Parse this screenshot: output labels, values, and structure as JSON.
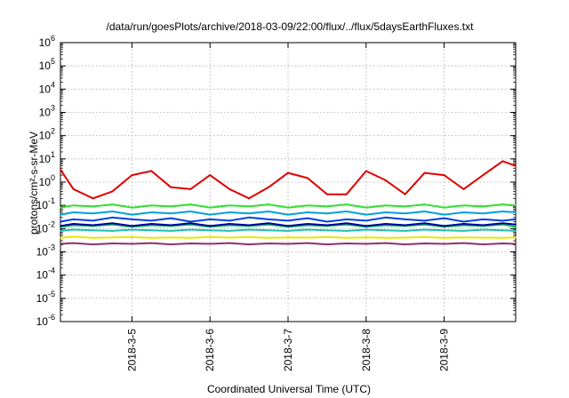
{
  "chart_data": {
    "type": "line",
    "title": "/data/run/goesPlots/archive/2018-03-09/22:00/flux/../flux/5daysEarthFluxes.txt",
    "xlabel": "Coordinated Universal Time (UTC)",
    "ylabel": "protons/cm²-s-sr-MeV",
    "yscale": "log",
    "ylim": [
      1e-06,
      1000000.0
    ],
    "y_ticks": [
      {
        "value": 1e-06,
        "base": "10",
        "exp": "-6"
      },
      {
        "value": 1e-05,
        "base": "10",
        "exp": "-5"
      },
      {
        "value": 0.0001,
        "base": "10",
        "exp": "-4"
      },
      {
        "value": 0.001,
        "base": "10",
        "exp": "-3"
      },
      {
        "value": 0.01,
        "base": "10",
        "exp": "-2"
      },
      {
        "value": 0.1,
        "base": "10",
        "exp": "-1"
      },
      {
        "value": 1,
        "base": "10",
        "exp": "0"
      },
      {
        "value": 10,
        "base": "10",
        "exp": "1"
      },
      {
        "value": 100,
        "base": "10",
        "exp": "2"
      },
      {
        "value": 1000,
        "base": "10",
        "exp": "3"
      },
      {
        "value": 10000,
        "base": "10",
        "exp": "4"
      },
      {
        "value": 100000,
        "base": "10",
        "exp": "5"
      },
      {
        "value": 1000000,
        "base": "10",
        "exp": "6"
      }
    ],
    "xlim": [
      "2018-03-04T02:00",
      "2018-03-09T22:00"
    ],
    "x_ticks": [
      "2018-3-5",
      "2018-3-6",
      "2018-3-7",
      "2018-3-8",
      "2018-3-9"
    ],
    "grid": true,
    "series": [
      {
        "color": "#e8e800",
        "x": [
          "2018-03-04T02:00",
          "2018-03-04T06:00",
          "2018-03-04T12:00",
          "2018-03-04T18:00",
          "2018-03-05T00:00",
          "2018-03-05T06:00",
          "2018-03-05T12:00",
          "2018-03-05T18:00",
          "2018-03-06T00:00",
          "2018-03-06T06:00",
          "2018-03-06T12:00",
          "2018-03-06T18:00",
          "2018-03-07T00:00",
          "2018-03-07T06:00",
          "2018-03-07T12:00",
          "2018-03-07T18:00",
          "2018-03-08T00:00",
          "2018-03-08T06:00",
          "2018-03-08T12:00",
          "2018-03-08T18:00",
          "2018-03-09T00:00",
          "2018-03-09T06:00",
          "2018-03-09T12:00",
          "2018-03-09T18:00",
          "2018-03-09T22:00"
        ],
        "y": [
          0.004,
          0.0045,
          0.004,
          0.0042,
          0.0043,
          0.004,
          0.0042,
          0.004,
          0.0044,
          0.0041,
          0.0043,
          0.004,
          0.0042,
          0.0041,
          0.0043,
          0.004,
          0.0042,
          0.004,
          0.0041,
          0.0043,
          0.004,
          0.0042,
          0.0041,
          0.004,
          0.0042
        ]
      },
      {
        "color": "#20c0b0",
        "x": [
          "2018-03-04T02:00",
          "2018-03-04T06:00",
          "2018-03-04T12:00",
          "2018-03-04T18:00",
          "2018-03-05T00:00",
          "2018-03-05T06:00",
          "2018-03-05T12:00",
          "2018-03-05T18:00",
          "2018-03-06T00:00",
          "2018-03-06T06:00",
          "2018-03-06T12:00",
          "2018-03-06T18:00",
          "2018-03-07T00:00",
          "2018-03-07T06:00",
          "2018-03-07T12:00",
          "2018-03-07T18:00",
          "2018-03-08T00:00",
          "2018-03-08T06:00",
          "2018-03-08T12:00",
          "2018-03-08T18:00",
          "2018-03-09T00:00",
          "2018-03-09T06:00",
          "2018-03-09T12:00",
          "2018-03-09T18:00",
          "2018-03-09T22:00"
        ],
        "y": [
          0.008,
          0.009,
          0.0085,
          0.008,
          0.009,
          0.0085,
          0.008,
          0.009,
          0.0085,
          0.008,
          0.009,
          0.0085,
          0.008,
          0.009,
          0.0085,
          0.008,
          0.009,
          0.0085,
          0.008,
          0.009,
          0.0085,
          0.008,
          0.009,
          0.0085,
          0.008
        ]
      },
      {
        "color": "#00c040",
        "x": [
          "2018-03-04T02:00",
          "2018-03-04T06:00",
          "2018-03-04T12:00",
          "2018-03-04T18:00",
          "2018-03-05T00:00",
          "2018-03-05T06:00",
          "2018-03-05T12:00",
          "2018-03-05T18:00",
          "2018-03-06T00:00",
          "2018-03-06T06:00",
          "2018-03-06T12:00",
          "2018-03-06T18:00",
          "2018-03-07T00:00",
          "2018-03-07T06:00",
          "2018-03-07T12:00",
          "2018-03-07T18:00",
          "2018-03-08T00:00",
          "2018-03-08T06:00",
          "2018-03-08T12:00",
          "2018-03-08T18:00",
          "2018-03-09T00:00",
          "2018-03-09T06:00",
          "2018-03-09T12:00",
          "2018-03-09T18:00",
          "2018-03-09T22:00"
        ],
        "y": [
          0.012,
          0.014,
          0.013,
          0.015,
          0.012,
          0.014,
          0.013,
          0.015,
          0.012,
          0.014,
          0.013,
          0.015,
          0.012,
          0.014,
          0.013,
          0.015,
          0.012,
          0.014,
          0.013,
          0.015,
          0.012,
          0.014,
          0.013,
          0.015,
          0.012
        ]
      },
      {
        "color": "#0040e0",
        "x": [
          "2018-03-04T02:00",
          "2018-03-04T06:00",
          "2018-03-04T12:00",
          "2018-03-04T18:00",
          "2018-03-05T00:00",
          "2018-03-05T06:00",
          "2018-03-05T12:00",
          "2018-03-05T18:00",
          "2018-03-06T00:00",
          "2018-03-06T06:00",
          "2018-03-06T12:00",
          "2018-03-06T18:00",
          "2018-03-07T00:00",
          "2018-03-07T06:00",
          "2018-03-07T12:00",
          "2018-03-07T18:00",
          "2018-03-08T00:00",
          "2018-03-08T06:00",
          "2018-03-08T12:00",
          "2018-03-08T18:00",
          "2018-03-09T00:00",
          "2018-03-09T06:00",
          "2018-03-09T12:00",
          "2018-03-09T18:00",
          "2018-03-09T22:00"
        ],
        "y": [
          0.02,
          0.025,
          0.022,
          0.03,
          0.025,
          0.022,
          0.028,
          0.02,
          0.025,
          0.022,
          0.03,
          0.025,
          0.022,
          0.028,
          0.02,
          0.025,
          0.022,
          0.03,
          0.025,
          0.022,
          0.028,
          0.02,
          0.025,
          0.022,
          0.025
        ]
      },
      {
        "color": "#00a0e0",
        "x": [
          "2018-03-04T02:00",
          "2018-03-04T06:00",
          "2018-03-04T12:00",
          "2018-03-04T18:00",
          "2018-03-05T00:00",
          "2018-03-05T06:00",
          "2018-03-05T12:00",
          "2018-03-05T18:00",
          "2018-03-06T00:00",
          "2018-03-06T06:00",
          "2018-03-06T12:00",
          "2018-03-06T18:00",
          "2018-03-07T00:00",
          "2018-03-07T06:00",
          "2018-03-07T12:00",
          "2018-03-07T18:00",
          "2018-03-08T00:00",
          "2018-03-08T06:00",
          "2018-03-08T12:00",
          "2018-03-08T18:00",
          "2018-03-09T00:00",
          "2018-03-09T06:00",
          "2018-03-09T12:00",
          "2018-03-09T18:00",
          "2018-03-09T22:00"
        ],
        "y": [
          0.04,
          0.05,
          0.045,
          0.055,
          0.04,
          0.05,
          0.045,
          0.055,
          0.04,
          0.05,
          0.045,
          0.055,
          0.04,
          0.05,
          0.045,
          0.055,
          0.04,
          0.05,
          0.045,
          0.055,
          0.04,
          0.05,
          0.045,
          0.055,
          0.05
        ]
      },
      {
        "color": "#30e030",
        "x": [
          "2018-03-04T02:00",
          "2018-03-04T06:00",
          "2018-03-04T12:00",
          "2018-03-04T18:00",
          "2018-03-05T00:00",
          "2018-03-05T06:00",
          "2018-03-05T12:00",
          "2018-03-05T18:00",
          "2018-03-06T00:00",
          "2018-03-06T06:00",
          "2018-03-06T12:00",
          "2018-03-06T18:00",
          "2018-03-07T00:00",
          "2018-03-07T06:00",
          "2018-03-07T12:00",
          "2018-03-07T18:00",
          "2018-03-08T00:00",
          "2018-03-08T06:00",
          "2018-03-08T12:00",
          "2018-03-08T18:00",
          "2018-03-09T00:00",
          "2018-03-09T06:00",
          "2018-03-09T12:00",
          "2018-03-09T18:00",
          "2018-03-09T22:00"
        ],
        "y": [
          0.08,
          0.1,
          0.09,
          0.11,
          0.08,
          0.1,
          0.09,
          0.11,
          0.08,
          0.1,
          0.09,
          0.11,
          0.08,
          0.1,
          0.09,
          0.11,
          0.08,
          0.1,
          0.09,
          0.11,
          0.08,
          0.1,
          0.09,
          0.11,
          0.1
        ]
      },
      {
        "color": "#0000a0",
        "x": [
          "2018-03-04T02:00",
          "2018-03-04T06:00",
          "2018-03-04T12:00",
          "2018-03-04T18:00",
          "2018-03-05T00:00",
          "2018-03-05T06:00",
          "2018-03-05T12:00",
          "2018-03-05T18:00",
          "2018-03-06T00:00",
          "2018-03-06T06:00",
          "2018-03-06T12:00",
          "2018-03-06T18:00",
          "2018-03-07T00:00",
          "2018-03-07T06:00",
          "2018-03-07T12:00",
          "2018-03-07T18:00",
          "2018-03-08T00:00",
          "2018-03-08T06:00",
          "2018-03-08T12:00",
          "2018-03-08T18:00",
          "2018-03-09T00:00",
          "2018-03-09T06:00",
          "2018-03-09T12:00",
          "2018-03-09T18:00",
          "2018-03-09T22:00"
        ],
        "y": [
          0.013,
          0.016,
          0.014,
          0.017,
          0.013,
          0.016,
          0.014,
          0.017,
          0.013,
          0.016,
          0.014,
          0.017,
          0.013,
          0.016,
          0.014,
          0.017,
          0.013,
          0.016,
          0.014,
          0.017,
          0.013,
          0.016,
          0.014,
          0.017,
          0.015
        ]
      },
      {
        "color": "#903070",
        "x": [
          "2018-03-04T02:00",
          "2018-03-04T06:00",
          "2018-03-04T12:00",
          "2018-03-04T18:00",
          "2018-03-05T00:00",
          "2018-03-05T06:00",
          "2018-03-05T12:00",
          "2018-03-05T18:00",
          "2018-03-06T00:00",
          "2018-03-06T06:00",
          "2018-03-06T12:00",
          "2018-03-06T18:00",
          "2018-03-07T00:00",
          "2018-03-07T06:00",
          "2018-03-07T12:00",
          "2018-03-07T18:00",
          "2018-03-08T00:00",
          "2018-03-08T06:00",
          "2018-03-08T12:00",
          "2018-03-08T18:00",
          "2018-03-09T00:00",
          "2018-03-09T06:00",
          "2018-03-09T12:00",
          "2018-03-09T18:00",
          "2018-03-09T22:00"
        ],
        "y": [
          0.0022,
          0.0024,
          0.0021,
          0.0023,
          0.0022,
          0.0024,
          0.0021,
          0.0023,
          0.0022,
          0.0024,
          0.0021,
          0.0023,
          0.0022,
          0.0024,
          0.0021,
          0.0023,
          0.0022,
          0.0024,
          0.0021,
          0.0023,
          0.0022,
          0.0024,
          0.0021,
          0.0023,
          0.0022
        ]
      },
      {
        "color": "#e00000",
        "x": [
          "2018-03-04T02:00",
          "2018-03-04T06:00",
          "2018-03-04T12:00",
          "2018-03-04T18:00",
          "2018-03-05T00:00",
          "2018-03-05T06:00",
          "2018-03-05T12:00",
          "2018-03-05T18:00",
          "2018-03-06T00:00",
          "2018-03-06T06:00",
          "2018-03-06T12:00",
          "2018-03-06T18:00",
          "2018-03-07T00:00",
          "2018-03-07T06:00",
          "2018-03-07T12:00",
          "2018-03-07T18:00",
          "2018-03-08T00:00",
          "2018-03-08T06:00",
          "2018-03-08T12:00",
          "2018-03-08T18:00",
          "2018-03-09T00:00",
          "2018-03-09T06:00",
          "2018-03-09T12:00",
          "2018-03-09T18:00",
          "2018-03-09T22:00"
        ],
        "y": [
          3.5,
          0.5,
          0.2,
          0.4,
          2,
          3,
          0.6,
          0.5,
          2,
          0.5,
          0.2,
          0.6,
          2.5,
          1.5,
          0.3,
          0.3,
          3,
          1.2,
          0.3,
          2.5,
          2,
          0.5,
          2,
          8,
          5
        ]
      }
    ]
  }
}
